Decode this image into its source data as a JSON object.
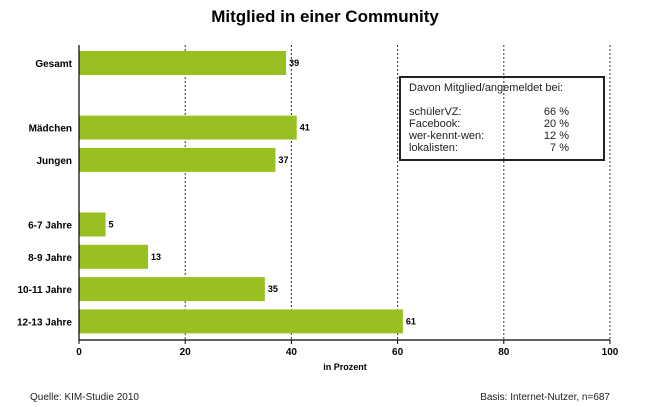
{
  "chart_data": {
    "type": "bar",
    "orientation": "horizontal",
    "title": "Mitglied in einer Community",
    "categories": [
      "Gesamt",
      "Mädchen",
      "Jungen",
      "6-7 Jahre",
      "8-9 Jahre",
      "10-11 Jahre",
      "12-13 Jahre"
    ],
    "values": [
      39,
      41,
      37,
      5,
      13,
      35,
      61
    ],
    "xlabel": "in Prozent",
    "xlim": [
      0,
      100
    ],
    "xticks": [
      "0",
      "20",
      "40",
      "60",
      "80",
      "100"
    ],
    "grid": "vertical dashed",
    "bar_color": "#99c021"
  },
  "inset": {
    "heading": "Davon Mitglied/angemeldet bei:",
    "rows": [
      {
        "name": "schülerVZ:",
        "value": "66 %"
      },
      {
        "name": "Facebook:",
        "value": "20 %"
      },
      {
        "name": "wer-kennt-wen:",
        "value": "12 %"
      },
      {
        "name": "lokalisten:",
        "value": "7 %"
      }
    ]
  },
  "footer": {
    "source": "Quelle: KIM-Studie 2010",
    "basis": "Basis: Internet-Nutzer,  n=687"
  }
}
